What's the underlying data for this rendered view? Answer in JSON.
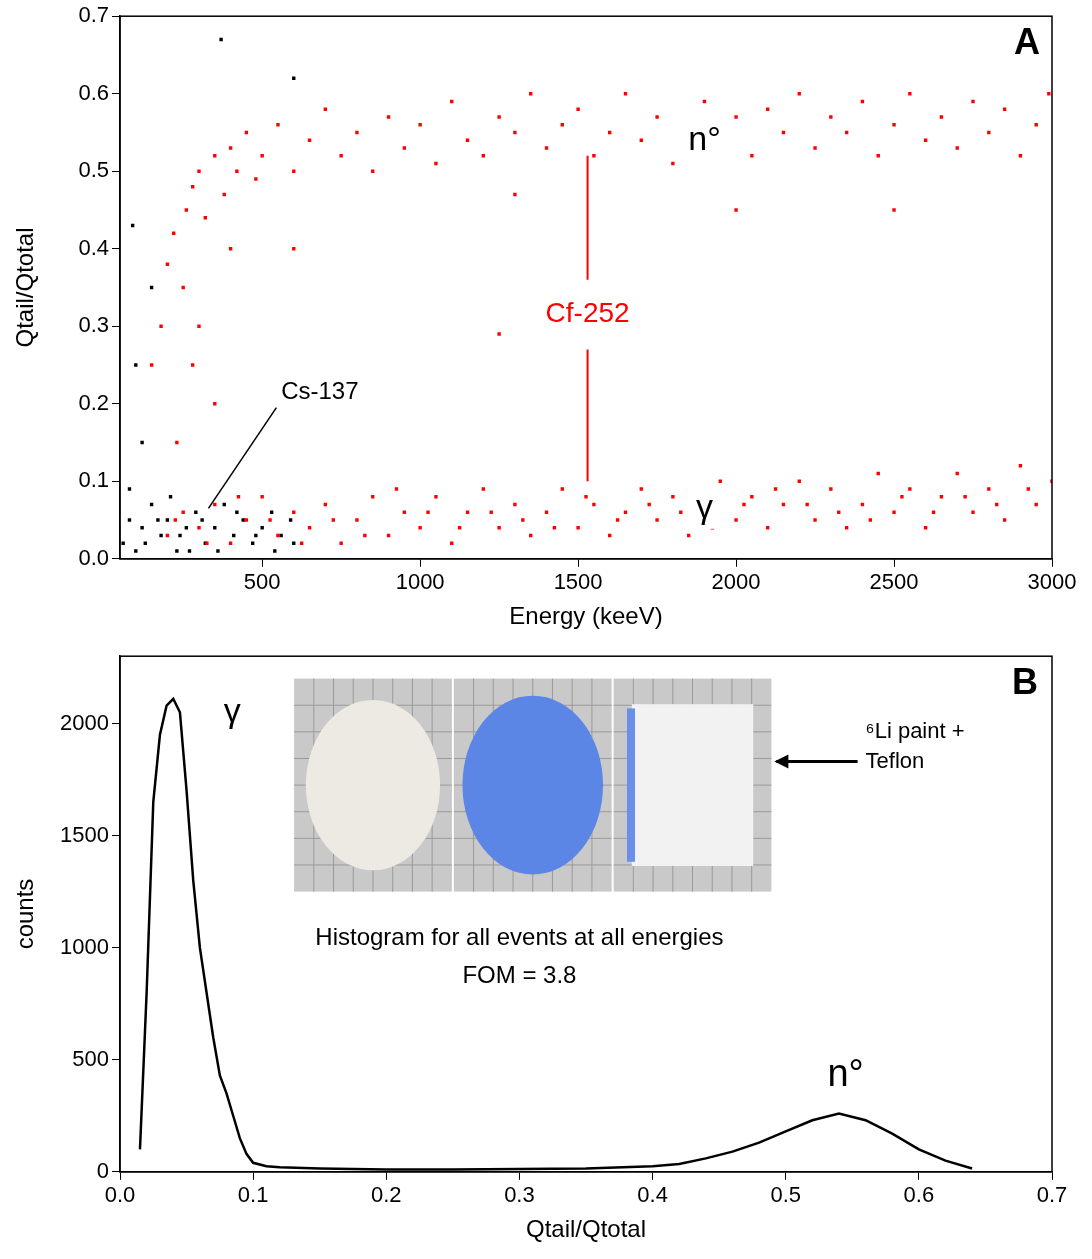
{
  "chart_data": [
    {
      "type": "scatter",
      "panel": "A",
      "x_label": "Energy (keeV)",
      "y_label": "Qtail/Qtotal",
      "xlim": [
        50,
        3000
      ],
      "xticks": [
        500,
        1000,
        1500,
        2000,
        2500,
        3000
      ],
      "ylim": [
        0,
        0.7
      ],
      "yticks": [
        {
          "value": 0,
          "label": "0.0"
        },
        0.1,
        0.2,
        0.3,
        0.4,
        0.5,
        0.6,
        0.7
      ],
      "grid": false,
      "annotations": [
        "n°",
        "γ"
      ],
      "series": [
        {
          "name": "Cf-252",
          "color": "#ff0000",
          "marker": "square",
          "x": [
            150,
            180,
            200,
            220,
            250,
            260,
            280,
            300,
            320,
            350,
            380,
            400,
            420,
            450,
            480,
            500,
            550,
            600,
            650,
            700,
            750,
            800,
            850,
            900,
            950,
            1000,
            1050,
            1100,
            1150,
            1200,
            1250,
            1300,
            1350,
            1400,
            1450,
            1500,
            1550,
            1600,
            1650,
            1700,
            1750,
            1800,
            1850,
            1900,
            1950,
            2000,
            2050,
            2100,
            2150,
            2200,
            2250,
            2300,
            2350,
            2400,
            2450,
            2500,
            2550,
            2600,
            2650,
            2700,
            2750,
            2800,
            2850,
            2900,
            2950,
            2990,
            300,
            400,
            350,
            600,
            1300,
            2000,
            2500,
            230,
            280,
            1250,
            200,
            250,
            300,
            350,
            400,
            450,
            500,
            550,
            600,
            650,
            700,
            750,
            800,
            850,
            900,
            950,
            1000,
            1050,
            1100,
            1150,
            1200,
            1250,
            1300,
            1350,
            1400,
            1450,
            1500,
            1550,
            1600,
            1650,
            1700,
            1750,
            1800,
            1850,
            1900,
            1950,
            2000,
            2050,
            2100,
            2150,
            2200,
            2250,
            2300,
            2350,
            2400,
            2450,
            2500,
            2550,
            2600,
            2650,
            2700,
            2750,
            2800,
            2850,
            2900,
            2950,
            3000,
            225,
            325,
            425,
            525,
            625,
            725,
            825,
            925,
            1025,
            1125,
            1225,
            1325,
            1425,
            1525,
            1625,
            1725,
            1825,
            1925,
            2025,
            2125,
            2225,
            2325,
            2425,
            2525,
            2625,
            2725,
            2825,
            2925
          ],
          "values": [
            0.25,
            0.3,
            0.38,
            0.42,
            0.35,
            0.45,
            0.48,
            0.5,
            0.44,
            0.52,
            0.47,
            0.53,
            0.5,
            0.55,
            0.49,
            0.52,
            0.56,
            0.5,
            0.54,
            0.58,
            0.52,
            0.55,
            0.5,
            0.57,
            0.53,
            0.56,
            0.51,
            0.59,
            0.54,
            0.52,
            0.57,
            0.55,
            0.6,
            0.53,
            0.56,
            0.58,
            0.52,
            0.55,
            0.6,
            0.54,
            0.57,
            0.51,
            0.56,
            0.59,
            0.54,
            0.57,
            0.52,
            0.58,
            0.55,
            0.6,
            0.53,
            0.57,
            0.55,
            0.59,
            0.52,
            0.56,
            0.6,
            0.54,
            0.57,
            0.53,
            0.59,
            0.55,
            0.58,
            0.52,
            0.56,
            0.6,
            0.3,
            0.4,
            0.2,
            0.4,
            0.47,
            0.45,
            0.45,
            0.15,
            0.25,
            0.29,
            0.03,
            0.06,
            0.04,
            0.07,
            0.02,
            0.05,
            0.08,
            0.03,
            0.06,
            0.04,
            0.07,
            0.02,
            0.05,
            0.08,
            0.03,
            0.06,
            0.04,
            0.08,
            0.02,
            0.06,
            0.09,
            0.04,
            0.07,
            0.03,
            0.06,
            0.09,
            0.04,
            0.07,
            0.03,
            0.06,
            0.09,
            0.05,
            0.08,
            0.03,
            0.07,
            0.1,
            0.05,
            0.08,
            0.04,
            0.07,
            0.1,
            0.05,
            0.09,
            0.04,
            0.07,
            0.11,
            0.06,
            0.09,
            0.04,
            0.08,
            0.11,
            0.06,
            0.09,
            0.05,
            0.12,
            0.07,
            0.1,
            0.05,
            0.02,
            0.08,
            0.05,
            0.02,
            0.05,
            0.03,
            0.09,
            0.06,
            0.04,
            0.06,
            0.05,
            0.04,
            0.08,
            0.05,
            0.07,
            0.06,
            0.04,
            0.07,
            0.09,
            0.07,
            0.06,
            0.05,
            0.08,
            0.06,
            0.08,
            0.07,
            0.09
          ]
        },
        {
          "name": "Cs-137",
          "color": "#000000",
          "marker": "square",
          "x": [
            60,
            80,
            100,
            120,
            150,
            180,
            200,
            230,
            260,
            290,
            320,
            350,
            380,
            410,
            440,
            470,
            500,
            530,
            560,
            590,
            80,
            130,
            170,
            210,
            240,
            270,
            310,
            360,
            420,
            480,
            540,
            600,
            100,
            150,
            370,
            600,
            90,
            120
          ],
          "values": [
            0.02,
            0.05,
            0.01,
            0.04,
            0.07,
            0.03,
            0.05,
            0.01,
            0.04,
            0.06,
            0.02,
            0.04,
            0.07,
            0.03,
            0.05,
            0.02,
            0.04,
            0.06,
            0.03,
            0.05,
            0.09,
            0.02,
            0.05,
            0.08,
            0.03,
            0.01,
            0.05,
            0.01,
            0.06,
            0.03,
            0.01,
            0.02,
            0.25,
            0.35,
            0.67,
            0.62,
            0.43,
            0.15
          ]
        }
      ]
    },
    {
      "type": "line",
      "panel": "B",
      "x_label": "Qtail/Qtotal",
      "y_label": "counts",
      "xlim": [
        0,
        0.7
      ],
      "xticks": [
        {
          "value": 0,
          "label": "0.0"
        },
        0.1,
        0.2,
        0.3,
        0.4,
        0.5,
        0.6,
        0.7
      ],
      "ylim": [
        0,
        2300
      ],
      "yticks": [
        0,
        500,
        1000,
        1500,
        2000
      ],
      "grid": false,
      "color": "#000000",
      "x": [
        0.015,
        0.02,
        0.025,
        0.03,
        0.035,
        0.04,
        0.045,
        0.05,
        0.055,
        0.06,
        0.065,
        0.07,
        0.075,
        0.08,
        0.085,
        0.09,
        0.095,
        0.1,
        0.11,
        0.12,
        0.15,
        0.2,
        0.25,
        0.3,
        0.35,
        0.4,
        0.42,
        0.44,
        0.46,
        0.48,
        0.5,
        0.52,
        0.54,
        0.56,
        0.58,
        0.6,
        0.62,
        0.64
      ],
      "values": [
        100,
        800,
        1650,
        1950,
        2080,
        2110,
        2050,
        1700,
        1300,
        1000,
        800,
        600,
        430,
        350,
        250,
        150,
        80,
        40,
        25,
        20,
        15,
        10,
        10,
        12,
        15,
        25,
        35,
        60,
        90,
        130,
        180,
        230,
        260,
        230,
        170,
        100,
        50,
        15
      ],
      "annotations": [
        "γ",
        "n°",
        "Histogram for all events at all energies",
        "FOM = 3.8",
        "⁶Li paint + Teflon"
      ]
    }
  ]
}
